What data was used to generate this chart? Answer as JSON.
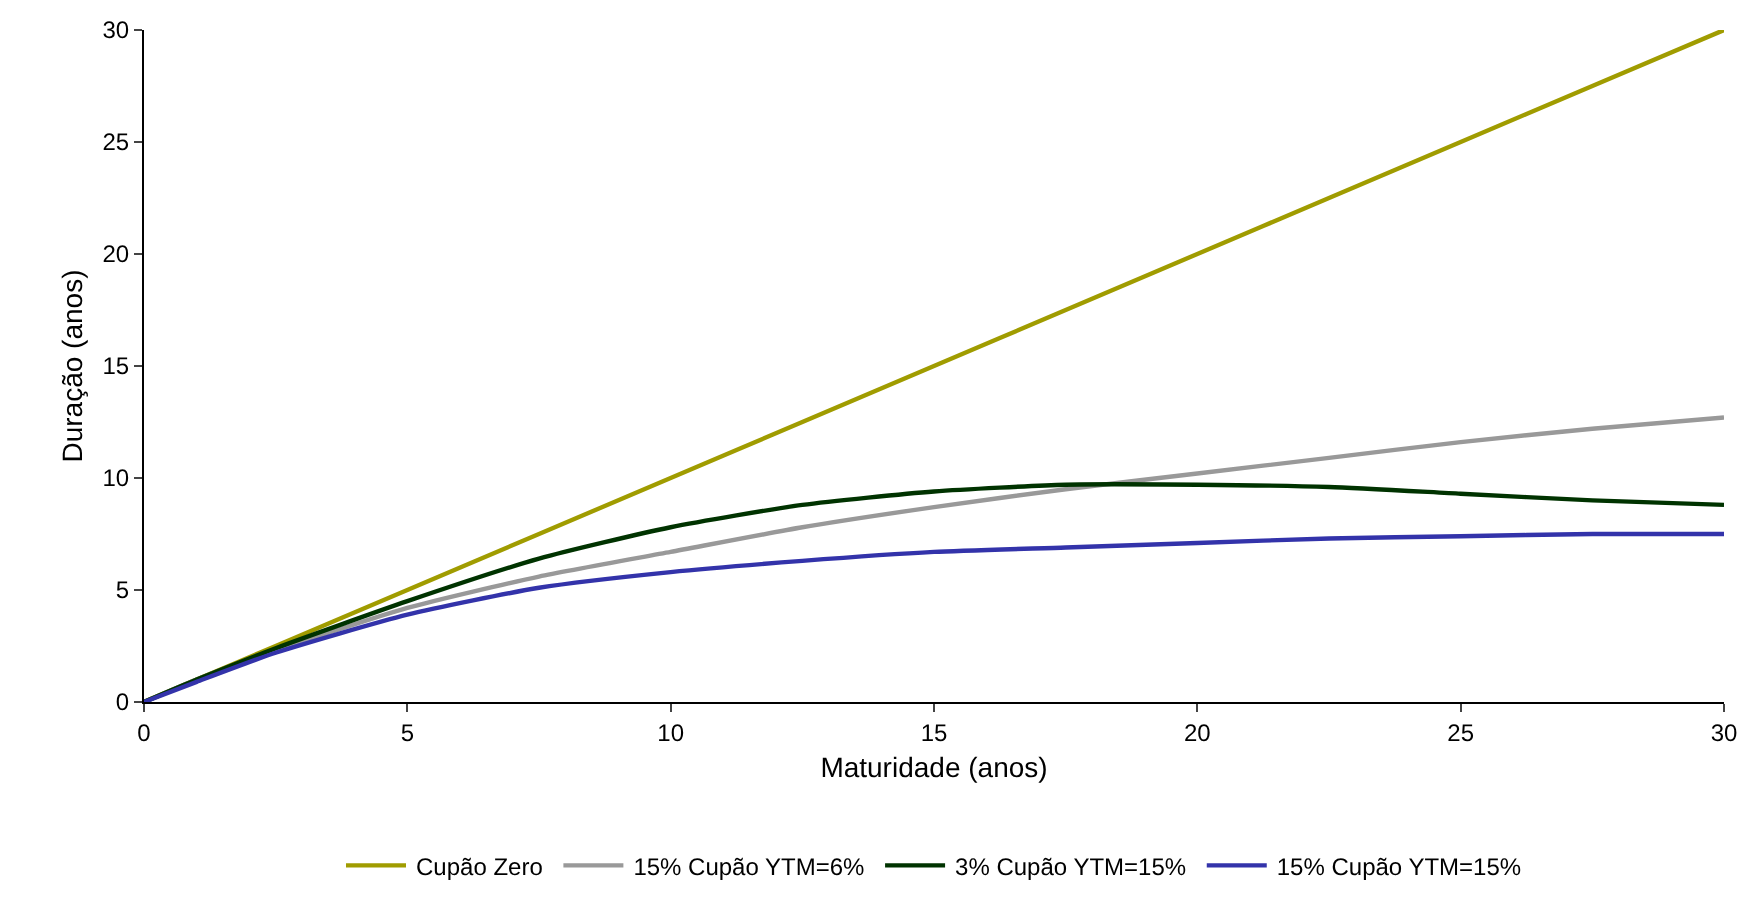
{
  "chart_data": {
    "type": "line",
    "xlabel": "Maturidade (anos)",
    "ylabel": "Duração (anos)",
    "x": [
      0,
      1,
      2.5,
      5,
      7.5,
      10,
      12.5,
      15,
      17.5,
      20,
      22.5,
      25,
      27.5,
      30
    ],
    "series": [
      {
        "name": "Cupão Zero",
        "color": "#a09c00",
        "values": [
          0,
          1,
          2.5,
          5,
          7.5,
          10,
          12.5,
          15,
          17.5,
          20,
          22.5,
          25,
          27.5,
          30
        ]
      },
      {
        "name": "15% Cupão YTM=6%",
        "color": "#999999",
        "values": [
          0,
          1.0,
          2.3,
          4.2,
          5.6,
          6.7,
          7.8,
          8.7,
          9.5,
          10.2,
          10.9,
          11.6,
          12.2,
          12.7
        ]
      },
      {
        "name": "3% Cupão YTM=15%",
        "color": "#003300",
        "values": [
          0,
          1.0,
          2.4,
          4.5,
          6.4,
          7.8,
          8.8,
          9.4,
          9.7,
          9.7,
          9.6,
          9.3,
          9.0,
          8.8
        ]
      },
      {
        "name": "15% Cupão YTM=15%",
        "color": "#3333aa",
        "values": [
          0,
          0.9,
          2.2,
          3.9,
          5.1,
          5.8,
          6.3,
          6.7,
          6.9,
          7.1,
          7.3,
          7.4,
          7.5,
          7.5
        ]
      }
    ],
    "xlim": [
      0,
      30
    ],
    "xticks": [
      0,
      5,
      10,
      15,
      20,
      25,
      30
    ],
    "ylim": [
      0,
      30
    ],
    "yticks": [
      0,
      5,
      10,
      15,
      20,
      25,
      30
    ],
    "grid": false,
    "legend": "bottom",
    "marker": "none",
    "line_style": "solid"
  }
}
